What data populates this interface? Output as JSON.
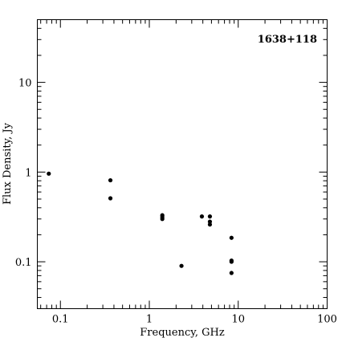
{
  "chart_data": {
    "type": "scatter",
    "title": "1638+118",
    "xlabel": "Frequency, GHz",
    "ylabel": "Flux Density, Jy",
    "xscale": "log",
    "yscale": "log",
    "xlim": [
      0.055,
      100
    ],
    "ylim": [
      0.03,
      50
    ],
    "xticks": [
      {
        "value": 0.1,
        "label": "0.1"
      },
      {
        "value": 1,
        "label": "1"
      },
      {
        "value": 10,
        "label": "10"
      },
      {
        "value": 100,
        "label": "100"
      }
    ],
    "yticks": [
      {
        "value": 0.1,
        "label": "0.1"
      },
      {
        "value": 1,
        "label": "1"
      },
      {
        "value": 10,
        "label": "10"
      }
    ],
    "legend": "none",
    "grid": false,
    "color": "#000000",
    "series": [
      {
        "points": [
          {
            "x": 0.074,
            "y": 0.96
          },
          {
            "x": 0.365,
            "y": 0.81
          },
          {
            "x": 0.365,
            "y": 0.51
          },
          {
            "x": 1.4,
            "y": 0.33
          },
          {
            "x": 1.4,
            "y": 0.315
          },
          {
            "x": 1.4,
            "y": 0.3
          },
          {
            "x": 2.3,
            "y": 0.09
          },
          {
            "x": 3.9,
            "y": 0.32
          },
          {
            "x": 4.8,
            "y": 0.32
          },
          {
            "x": 4.8,
            "y": 0.28
          },
          {
            "x": 4.8,
            "y": 0.26
          },
          {
            "x": 8.4,
            "y": 0.185
          },
          {
            "x": 8.4,
            "y": 0.103
          },
          {
            "x": 8.4,
            "y": 0.1
          },
          {
            "x": 8.4,
            "y": 0.075
          }
        ]
      }
    ]
  }
}
